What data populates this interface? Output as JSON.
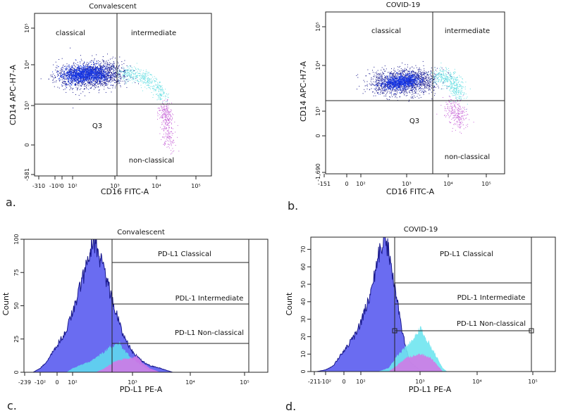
{
  "panels": [
    {
      "id": "a",
      "letter": "a.",
      "title": "Convalescent",
      "type": "scatter",
      "xlabel": "CD16 FITC-A",
      "ylabel": "CD14 APC-H7-A",
      "xticks": [
        {
          "v": -310,
          "t": "-310"
        },
        {
          "v": -100,
          "t": "-10²"
        },
        {
          "v": 0,
          "t": "0"
        },
        {
          "v": 100,
          "t": "10²"
        },
        {
          "v": 1000,
          "t": "10³"
        },
        {
          "v": 10000,
          "t": "10⁴"
        },
        {
          "v": 100000,
          "t": "10⁵"
        }
      ],
      "yticks": [
        {
          "v": -581,
          "t": "-581"
        },
        {
          "v": 0,
          "t": "0"
        },
        {
          "v": 1000,
          "t": "10³"
        },
        {
          "v": 10000,
          "t": "10⁴"
        },
        {
          "v": 100000,
          "t": "10⁵"
        }
      ],
      "quadrant_labels": [
        "classical",
        "intermediate",
        "Q3",
        "non-classical"
      ],
      "populations": [
        {
          "name": "classical",
          "color": "#1a1a8c",
          "n": 1500,
          "path": [
            [
              40,
              5000
            ],
            [
              300,
              6000
            ],
            [
              950,
              6000
            ]
          ]
        },
        {
          "name": "classical",
          "color": "#1536e6",
          "n": 1200,
          "path": [
            [
              60,
              5500
            ],
            [
              200,
              6000
            ],
            [
              500,
              6200
            ]
          ]
        },
        {
          "name": "intermediate",
          "color": "#6fe0e4",
          "n": 450,
          "path": [
            [
              1300,
              6500
            ],
            [
              3000,
              5800
            ],
            [
              8000,
              3800
            ],
            [
              15000,
              1500
            ]
          ]
        },
        {
          "name": "non-classical",
          "color": "#c866d8",
          "n": 320,
          "path": [
            [
              15000,
              900
            ],
            [
              18000,
              300
            ],
            [
              21000,
              0
            ]
          ]
        }
      ]
    },
    {
      "id": "b",
      "letter": "b.",
      "title": "COVID-19",
      "type": "scatter",
      "xlabel": "CD16 FITC-A",
      "ylabel": "CD14 APC-H7-A",
      "xticks": [
        {
          "v": -151,
          "t": "-151"
        },
        {
          "v": 0,
          "t": "0"
        },
        {
          "v": 100,
          "t": "10²"
        },
        {
          "v": 1000,
          "t": "10³"
        },
        {
          "v": 10000,
          "t": "10⁴"
        },
        {
          "v": 100000,
          "t": "10⁵"
        }
      ],
      "yticks": [
        {
          "v": -1690,
          "t": "-1,690"
        },
        {
          "v": 0,
          "t": "0"
        },
        {
          "v": 1000,
          "t": "10³"
        },
        {
          "v": 10000,
          "t": "10⁴"
        },
        {
          "v": 100000,
          "t": "10⁵"
        }
      ],
      "quadrant_labels": [
        "classical",
        "intermediate",
        "Q3",
        "non-classical"
      ],
      "populations": [
        {
          "name": "classical",
          "color": "#1a1a8c",
          "n": 1400,
          "path": [
            [
              250,
              4000
            ],
            [
              900,
              4500
            ],
            [
              3500,
              5000
            ]
          ]
        },
        {
          "name": "classical",
          "color": "#1536e6",
          "n": 900,
          "path": [
            [
              400,
              4000
            ],
            [
              800,
              4500
            ],
            [
              1500,
              4800
            ]
          ]
        },
        {
          "name": "intermediate",
          "color": "#6fe0e4",
          "n": 450,
          "path": [
            [
              5000,
              6000
            ],
            [
              12000,
              5000
            ],
            [
              20000,
              2200
            ]
          ]
        },
        {
          "name": "non-classical",
          "color": "#c866d8",
          "n": 250,
          "path": [
            [
              10000,
              1200
            ],
            [
              18000,
              700
            ],
            [
              20000,
              200
            ]
          ]
        }
      ]
    },
    {
      "id": "c",
      "letter": "c.",
      "title": "Convalescent",
      "type": "histogram",
      "xlabel": "PD-L1 PE-A",
      "ylabel": "Count",
      "xticks": [
        {
          "v": -239,
          "t": "-239"
        },
        {
          "v": -100,
          "t": "-10²"
        },
        {
          "v": 0,
          "t": "0"
        },
        {
          "v": 100,
          "t": "10²"
        },
        {
          "v": 1000,
          "t": "10³"
        },
        {
          "v": 10000,
          "t": "10⁴"
        },
        {
          "v": 100000,
          "t": "10⁵"
        }
      ],
      "yticks": [
        {
          "v": 0,
          "t": "0"
        },
        {
          "v": 25,
          "t": "25"
        },
        {
          "v": 50,
          "t": "50"
        },
        {
          "v": 75,
          "t": "75"
        },
        {
          "v": 100,
          "t": "100"
        }
      ],
      "ylim": [
        0,
        100
      ],
      "gates": [
        "PD-L1 Classical",
        "PDL-1 Intermediate",
        "PD-L1 Non-classical"
      ],
      "series": [
        {
          "name": "classical",
          "color": "#5a5cf0",
          "outline": "#1a1a8c",
          "points": [
            [
              -150,
              0
            ],
            [
              -100,
              3
            ],
            [
              -50,
              8
            ],
            [
              0,
              20
            ],
            [
              50,
              32
            ],
            [
              100,
              45
            ],
            [
              150,
              70
            ],
            [
              200,
              90
            ],
            [
              230,
              100
            ],
            [
              300,
              85
            ],
            [
              400,
              65
            ],
            [
              500,
              50
            ],
            [
              700,
              28
            ],
            [
              1000,
              15
            ],
            [
              1500,
              8
            ],
            [
              2000,
              5
            ],
            [
              3000,
              3
            ],
            [
              5000,
              0
            ]
          ]
        },
        {
          "name": "intermediate",
          "color": "#5fd8ee",
          "points": [
            [
              50,
              0
            ],
            [
              100,
              3
            ],
            [
              200,
              8
            ],
            [
              300,
              13
            ],
            [
              400,
              18
            ],
            [
              600,
              22
            ],
            [
              800,
              15
            ],
            [
              1000,
              10
            ],
            [
              1500,
              5
            ],
            [
              2000,
              1
            ],
            [
              2500,
              0
            ]
          ]
        },
        {
          "name": "non-classical",
          "color": "#cf7ae6",
          "points": [
            [
              250,
              0
            ],
            [
              350,
              3
            ],
            [
              500,
              8
            ],
            [
              700,
              10
            ],
            [
              1000,
              11
            ],
            [
              1200,
              12
            ],
            [
              1500,
              7
            ],
            [
              2000,
              3
            ],
            [
              3000,
              0
            ]
          ]
        }
      ]
    },
    {
      "id": "d",
      "letter": "d.",
      "title": "COVID-19",
      "type": "histogram",
      "xlabel": "PD-L1 PE-A",
      "ylabel": "Count",
      "xticks": [
        {
          "v": -211,
          "t": "-211"
        },
        {
          "v": -100,
          "t": "-10²"
        },
        {
          "v": 0,
          "t": "0"
        },
        {
          "v": 100,
          "t": "10²"
        },
        {
          "v": 1000,
          "t": "10³"
        },
        {
          "v": 10000,
          "t": "10⁴"
        },
        {
          "v": 100000,
          "t": "10⁵"
        }
      ],
      "yticks": [
        {
          "v": 0,
          "t": "0"
        },
        {
          "v": 10,
          "t": "10"
        },
        {
          "v": 20,
          "t": "20"
        },
        {
          "v": 30,
          "t": "30"
        },
        {
          "v": 40,
          "t": "40"
        },
        {
          "v": 50,
          "t": "50"
        },
        {
          "v": 60,
          "t": "60"
        },
        {
          "v": 70,
          "t": "70"
        }
      ],
      "ylim": [
        0,
        77
      ],
      "gates": [
        "PD-L1 Classical",
        "PDL-1 Intermediate",
        "PD-L1 Non-classical"
      ],
      "series": [
        {
          "name": "classical",
          "color": "#5a5cf0",
          "outline": "#1a1a8c",
          "points": [
            [
              -180,
              0
            ],
            [
              -100,
              1
            ],
            [
              -50,
              3
            ],
            [
              0,
              12
            ],
            [
              50,
              20
            ],
            [
              100,
              28
            ],
            [
              150,
              45
            ],
            [
              200,
              65
            ],
            [
              250,
              76
            ],
            [
              300,
              70
            ],
            [
              400,
              45
            ],
            [
              500,
              25
            ],
            [
              600,
              12
            ],
            [
              700,
              5
            ],
            [
              1000,
              1
            ],
            [
              1500,
              0
            ]
          ]
        },
        {
          "name": "intermediate",
          "color": "#6fe6f0",
          "points": [
            [
              200,
              0
            ],
            [
              300,
              2
            ],
            [
              400,
              8
            ],
            [
              500,
              12
            ],
            [
              700,
              17
            ],
            [
              1000,
              25
            ],
            [
              1500,
              15
            ],
            [
              2000,
              8
            ],
            [
              2500,
              2
            ],
            [
              3000,
              0
            ]
          ]
        },
        {
          "name": "non-classical",
          "color": "#cf7ae6",
          "points": [
            [
              300,
              0
            ],
            [
              400,
              3
            ],
            [
              600,
              8
            ],
            [
              1000,
              10
            ],
            [
              1500,
              8
            ],
            [
              2000,
              4
            ],
            [
              2500,
              0
            ]
          ]
        }
      ]
    }
  ]
}
